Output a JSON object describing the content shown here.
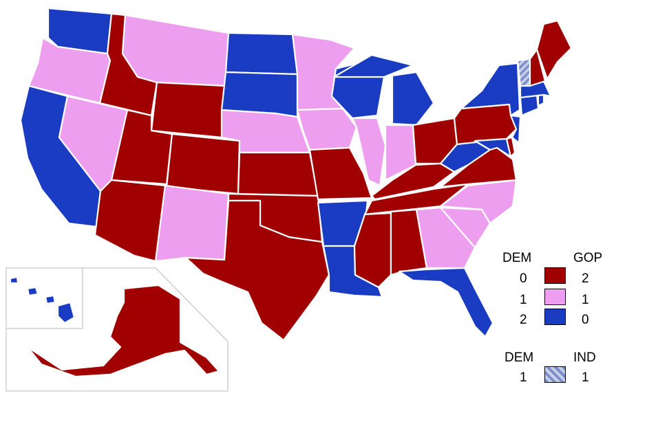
{
  "colors": {
    "gop_2": "#a00000",
    "split": "#ee9eee",
    "dem_2": "#1a3cc2",
    "dem_ind_stripe_a": "#7c8fc9",
    "dem_ind_stripe_b": "#c8d0e8",
    "border": "#ffffff",
    "inset_frame": "#c8c8c8"
  },
  "legend": {
    "party_header_left": "DEM",
    "party_header_right": "GOP",
    "rows": [
      {
        "dem": "0",
        "gop": "2",
        "color": "#a00000"
      },
      {
        "dem": "1",
        "gop": "1",
        "color": "#ee9eee"
      },
      {
        "dem": "2",
        "gop": "0",
        "color": "#1a3cc2"
      }
    ],
    "ind_header_left": "DEM",
    "ind_header_right": "IND",
    "ind_row": {
      "dem": "1",
      "ind": "1"
    }
  },
  "states": {
    "WA": "dem_2",
    "OR": "split",
    "CA": "dem_2",
    "NV": "split",
    "ID": "gop_2",
    "MT": "split",
    "WY": "gop_2",
    "UT": "gop_2",
    "AZ": "gop_2",
    "CO": "gop_2",
    "NM": "split",
    "ND": "dem_2",
    "SD": "dem_2",
    "NE": "split",
    "KS": "gop_2",
    "OK": "gop_2",
    "TX": "gop_2",
    "MN": "split",
    "IA": "split",
    "MO": "gop_2",
    "AR": "dem_2",
    "LA": "dem_2",
    "WI": "dem_2",
    "IL": "split",
    "MI": "dem_2",
    "IN": "split",
    "OH": "gop_2",
    "KY": "gop_2",
    "TN": "gop_2",
    "MS": "gop_2",
    "AL": "gop_2",
    "GA": "split",
    "FL": "dem_2",
    "SC": "split",
    "NC": "split",
    "VA": "gop_2",
    "WV": "dem_2",
    "PA": "gop_2",
    "NY": "dem_2",
    "NJ": "dem_2",
    "DE": "gop_2",
    "MD": "dem_2",
    "CT": "dem_2",
    "RI": "dem_2",
    "MA": "dem_2",
    "VT": "dem_ind",
    "NH": "gop_2",
    "ME": "gop_2",
    "AK": "gop_2",
    "HI": "dem_2"
  }
}
